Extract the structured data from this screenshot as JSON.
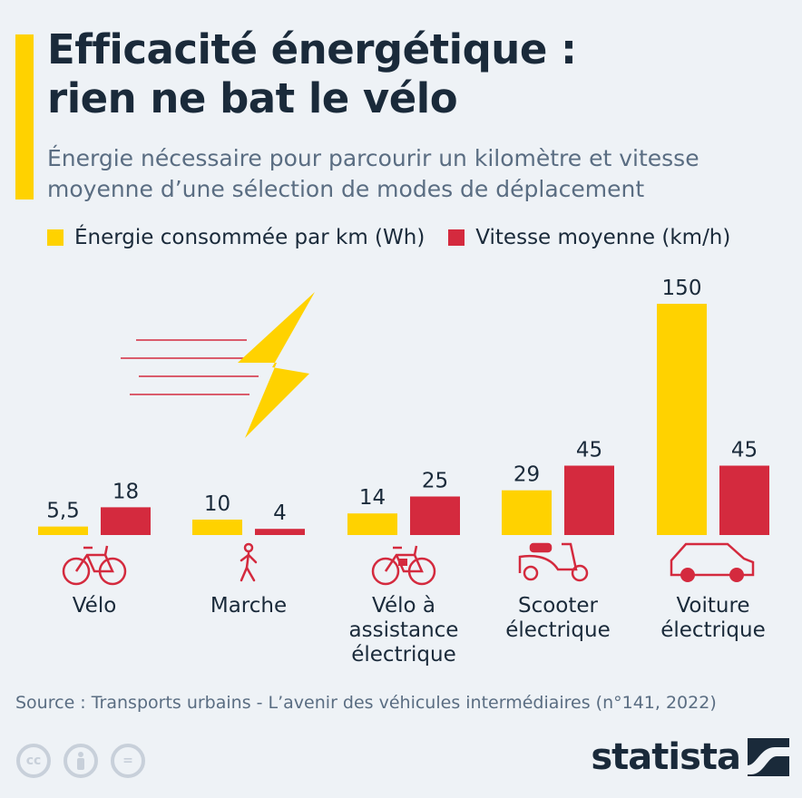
{
  "header": {
    "title_line1": "Efficacité énergétique :",
    "title_line2": "rien ne bat le vélo",
    "subtitle_line1": "Énergie nécessaire pour parcourir un kilomètre et vitesse",
    "subtitle_line2": "moyenne d’une sélection de modes de déplacement"
  },
  "colors": {
    "energy": "#ffd200",
    "speed": "#d42a3e",
    "accent": "#ffd200",
    "text": "#1a2a3a",
    "muted": "#5a6d82"
  },
  "chart_data": {
    "type": "bar",
    "categories": [
      "Vélo",
      "Marche",
      "Vélo à assistance électrique",
      "Scooter électrique",
      "Voiture électrique"
    ],
    "category_lines": [
      [
        "Vélo"
      ],
      [
        "Marche"
      ],
      [
        "Vélo à",
        "assistance",
        "électrique"
      ],
      [
        "Scooter",
        "électrique"
      ],
      [
        "Voiture",
        "électrique"
      ]
    ],
    "category_icons": [
      "bicycle-icon",
      "walking-person-icon",
      "electric-bicycle-icon",
      "scooter-icon",
      "car-icon"
    ],
    "series": [
      {
        "name": "Énergie consommée par km (Wh)",
        "values": [
          5.5,
          10,
          14,
          29,
          150
        ],
        "labels": [
          "5,5",
          "10",
          "14",
          "29",
          "150"
        ]
      },
      {
        "name": "Vitesse moyenne (km/h)",
        "values": [
          18,
          4,
          25,
          45,
          45
        ],
        "labels": [
          "18",
          "4",
          "25",
          "45",
          "45"
        ]
      }
    ],
    "ylim": [
      0,
      150
    ],
    "grid": false,
    "legend_position": "top-left"
  },
  "footer": {
    "source": "Source : Transports urbains - L’avenir des véhicules intermédiaires (n°141, 2022)",
    "cc_icons": [
      "cc-icon",
      "attribution-icon",
      "no-derivatives-icon"
    ],
    "cc_glyphs": [
      "cc",
      "",
      "="
    ],
    "brand": "statista"
  }
}
